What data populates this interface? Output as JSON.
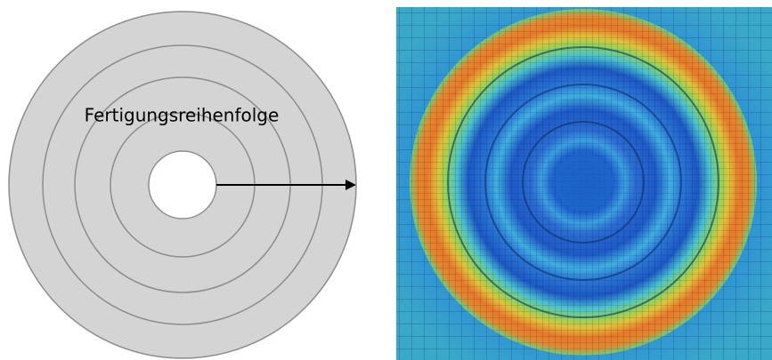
{
  "diagram": {
    "label": "Fertigungsreihenfolge"
  }
}
